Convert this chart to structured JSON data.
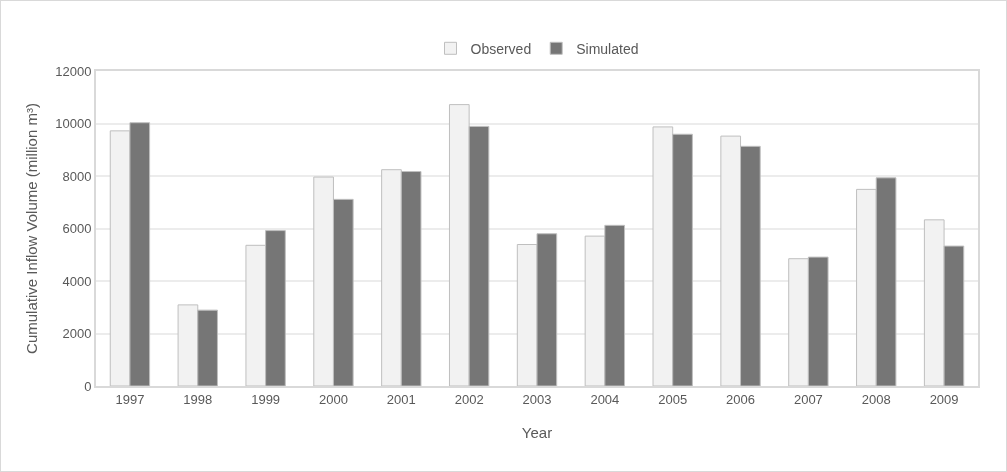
{
  "chart_data": {
    "type": "bar",
    "xlabel": "Year",
    "ylabel": "Cumulative Inflow Volume (million m³)",
    "categories": [
      "1997",
      "1998",
      "1999",
      "2000",
      "2001",
      "2002",
      "2003",
      "2004",
      "2005",
      "2006",
      "2007",
      "2008",
      "2009"
    ],
    "series": [
      {
        "name": "Observed",
        "color": "#f2f2f2",
        "values": [
          9720,
          3090,
          5360,
          7960,
          8240,
          10720,
          5390,
          5710,
          9870,
          9520,
          4850,
          7490,
          6330
        ]
      },
      {
        "name": "Simulated",
        "color": "#767676",
        "values": [
          10030,
          2890,
          5920,
          7110,
          8170,
          9890,
          5800,
          6120,
          9590,
          9130,
          4910,
          7930,
          5330
        ]
      }
    ],
    "ylim": [
      0,
      12000
    ],
    "yticks": [
      0,
      2000,
      4000,
      6000,
      8000,
      10000,
      12000
    ],
    "grid": "y",
    "legend": "top"
  }
}
